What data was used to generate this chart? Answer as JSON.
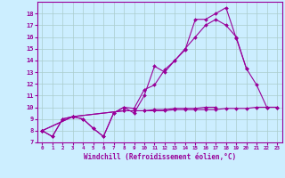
{
  "xlabel": "Windchill (Refroidissement éolien,°C)",
  "background_color": "#cceeff",
  "line_color": "#990099",
  "grid_color": "#aacccc",
  "xlim": [
    -0.5,
    23.5
  ],
  "ylim": [
    7,
    19
  ],
  "xticks": [
    0,
    1,
    2,
    3,
    4,
    5,
    6,
    7,
    8,
    9,
    10,
    11,
    12,
    13,
    14,
    15,
    16,
    17,
    18,
    19,
    20,
    21,
    22,
    23
  ],
  "yticks": [
    7,
    8,
    9,
    10,
    11,
    12,
    13,
    14,
    15,
    16,
    17,
    18
  ],
  "series": [
    [
      8.0,
      7.5,
      9.0,
      9.2,
      9.0,
      8.2,
      7.5,
      9.5,
      10.0,
      9.5,
      11.0,
      13.5,
      13.0,
      14.0,
      14.9,
      17.5,
      17.5,
      18.0,
      18.5,
      15.9,
      13.3,
      11.9,
      10.0,
      10.0
    ],
    [
      8.0,
      7.5,
      9.0,
      9.2,
      9.0,
      8.2,
      7.5,
      9.5,
      10.0,
      9.9,
      11.5,
      11.9,
      13.2,
      14.0,
      15.0,
      16.0,
      17.0,
      17.5,
      17.0,
      16.0,
      13.3,
      null,
      null,
      null
    ],
    [
      8.0,
      null,
      null,
      9.2,
      null,
      null,
      null,
      null,
      9.7,
      9.7,
      9.7,
      9.7,
      9.7,
      9.8,
      9.8,
      9.8,
      9.8,
      9.8,
      9.9,
      9.9,
      9.9,
      10.0,
      10.0,
      10.0
    ],
    [
      8.0,
      null,
      null,
      9.2,
      null,
      null,
      null,
      null,
      9.7,
      9.7,
      9.7,
      9.8,
      9.8,
      9.9,
      9.9,
      9.9,
      10.0,
      10.0,
      null,
      null,
      null,
      null,
      null,
      null
    ]
  ]
}
